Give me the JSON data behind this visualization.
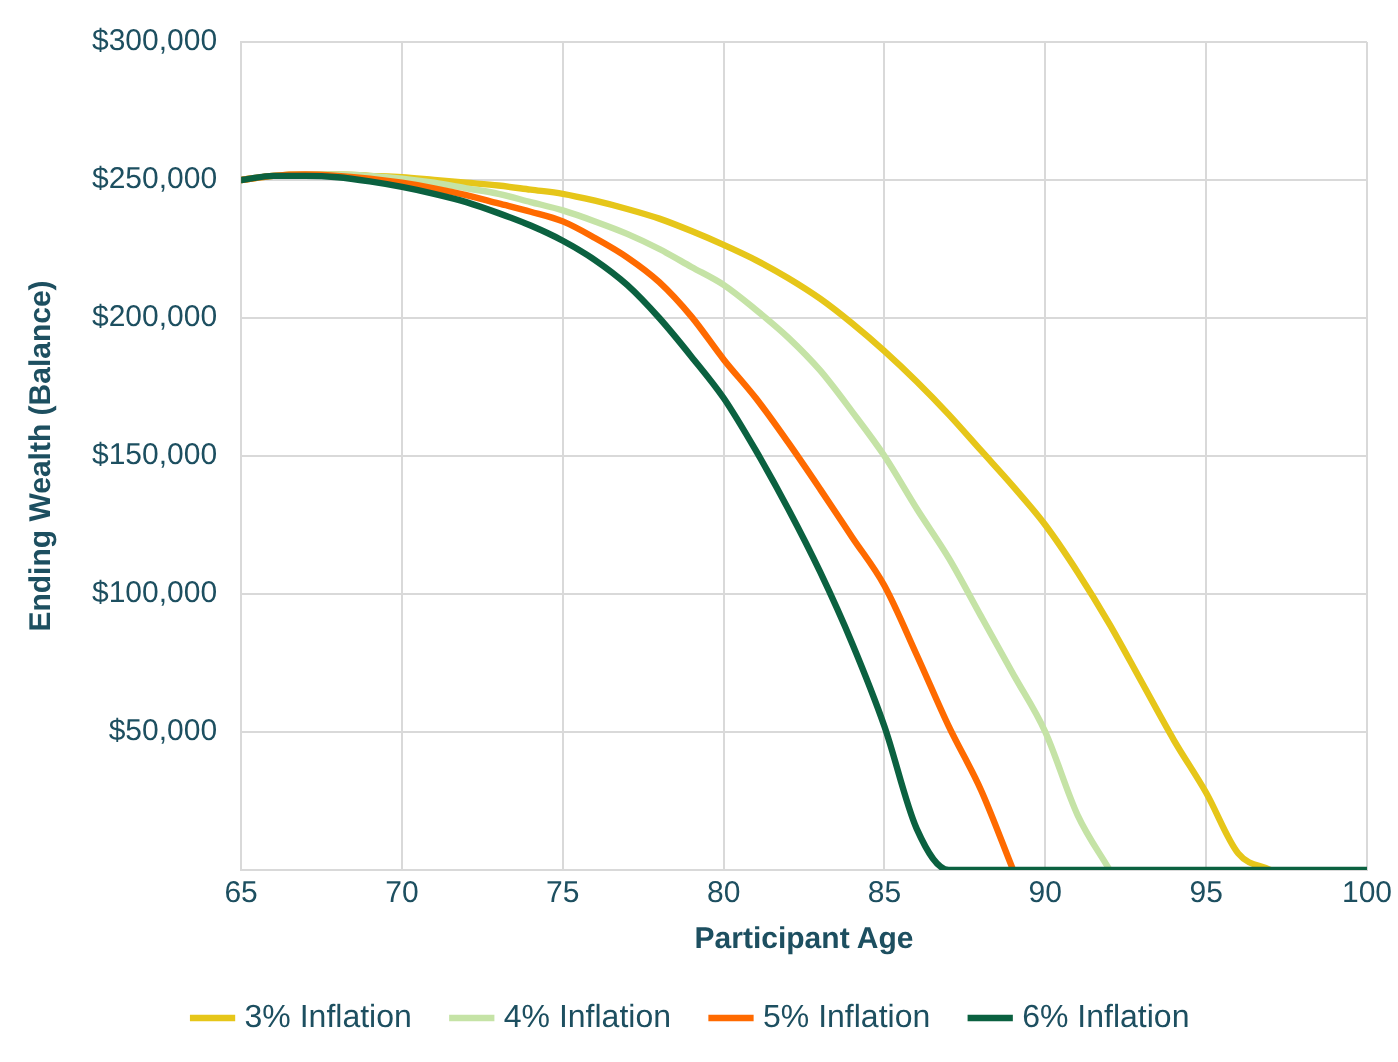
{
  "chart_data": {
    "type": "line",
    "xlabel": "Participant Age",
    "ylabel": "Ending Wealth (Balance)",
    "x": [
      65,
      66,
      67,
      68,
      69,
      70,
      71,
      72,
      73,
      74,
      75,
      76,
      77,
      78,
      79,
      80,
      81,
      82,
      83,
      84,
      85,
      86,
      87,
      88,
      89,
      90,
      91,
      92,
      93,
      94,
      95,
      96,
      97,
      98,
      99,
      100
    ],
    "series": [
      {
        "name": "3% Inflation",
        "color": "#e6c619",
        "values": [
          250000,
          251500,
          252000,
          252000,
          251500,
          251000,
          250000,
          249000,
          248000,
          246500,
          245000,
          242500,
          239500,
          236000,
          231500,
          226500,
          221000,
          214500,
          207000,
          198000,
          188000,
          177000,
          165000,
          152000,
          139000,
          125000,
          108000,
          89000,
          68000,
          47000,
          28000,
          6000,
          0,
          null,
          null,
          null
        ]
      },
      {
        "name": "4% Inflation",
        "color": "#c5e3a6",
        "values": [
          250000,
          251500,
          252000,
          252000,
          251500,
          250500,
          249000,
          247000,
          245000,
          242000,
          239000,
          235000,
          230500,
          225000,
          218500,
          212000,
          203000,
          193000,
          181000,
          166000,
          150000,
          131000,
          113000,
          92000,
          71000,
          50000,
          20000,
          0,
          null,
          null,
          null,
          null,
          null,
          null,
          null,
          null
        ]
      },
      {
        "name": "5% Inflation",
        "color": "#ff6a00",
        "values": [
          250000,
          251500,
          252000,
          251500,
          250500,
          249000,
          247000,
          244500,
          241500,
          238500,
          235000,
          229000,
          222000,
          213000,
          200500,
          185000,
          171000,
          155000,
          138000,
          120500,
          103000,
          78000,
          52000,
          29000,
          0,
          null,
          null,
          null,
          null,
          null,
          null,
          null,
          null,
          null,
          null,
          null
        ]
      },
      {
        "name": "6% Inflation",
        "color": "#0b6140",
        "values": [
          250000,
          251500,
          251500,
          251000,
          249500,
          247500,
          245000,
          242000,
          238000,
          233500,
          228000,
          221000,
          212000,
          200000,
          186000,
          171000,
          152000,
          131000,
          108000,
          82000,
          52000,
          15000,
          0,
          0,
          0,
          0,
          0,
          0,
          0,
          0,
          0,
          0,
          0,
          0,
          0,
          0
        ]
      }
    ],
    "xlim": [
      65,
      100
    ],
    "xticks": [
      65,
      70,
      75,
      80,
      85,
      90,
      95,
      100
    ],
    "ylim": [
      0,
      300000
    ],
    "yticks": [
      {
        "value": 0,
        "label": null
      },
      {
        "value": 50000,
        "label": "$50,000"
      },
      {
        "value": 100000,
        "label": "$100,000"
      },
      {
        "value": 150000,
        "label": "$150,000"
      },
      {
        "value": 200000,
        "label": "$200,000"
      },
      {
        "value": 250000,
        "label": "$250,000"
      },
      {
        "value": 300000,
        "label": "$300,000"
      }
    ],
    "grid": true,
    "legend": "bottom",
    "marker": "none",
    "line_style": "solid"
  }
}
